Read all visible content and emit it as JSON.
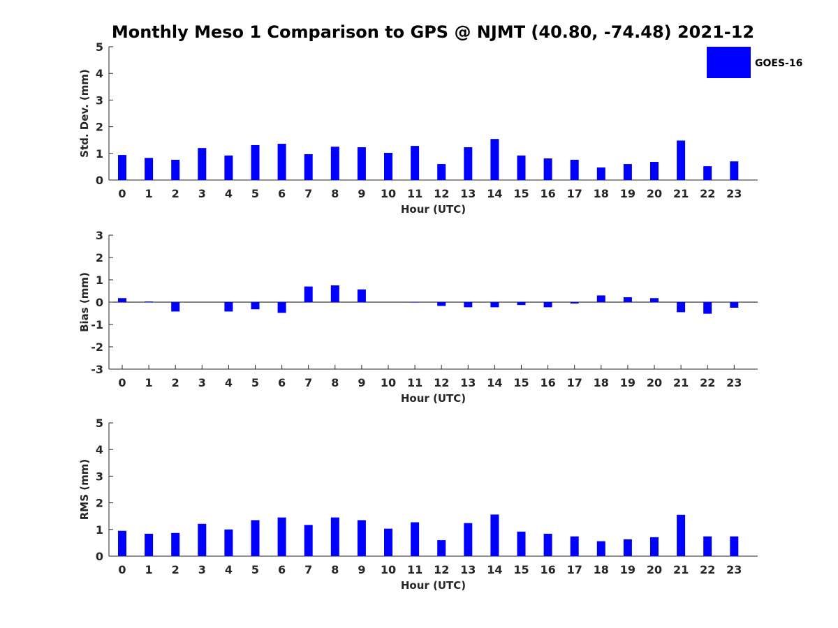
{
  "title": "Monthly Meso 1 Comparison to GPS @ NJMT (40.80, -74.48) 2021-12",
  "colors": {
    "bar": "#0000ff",
    "axis": "#262626"
  },
  "legend": {
    "label": "GOES-16",
    "placement": "top-right"
  },
  "chart_data": [
    {
      "type": "bar",
      "xlabel": "Hour (UTC)",
      "ylabel": "Std. Dev. (mm)",
      "ylim": [
        0,
        5
      ],
      "yticks": [
        "0",
        "1",
        "2",
        "3",
        "4",
        "5"
      ],
      "categories": [
        "0",
        "1",
        "2",
        "3",
        "4",
        "5",
        "6",
        "7",
        "8",
        "9",
        "10",
        "11",
        "12",
        "13",
        "14",
        "15",
        "16",
        "17",
        "18",
        "19",
        "20",
        "21",
        "22",
        "23"
      ],
      "series": [
        {
          "name": "GOES-16",
          "values": [
            0.94,
            0.83,
            0.76,
            1.2,
            0.92,
            1.31,
            1.36,
            0.97,
            1.25,
            1.23,
            1.02,
            1.28,
            0.6,
            1.23,
            1.54,
            0.92,
            0.81,
            0.76,
            0.47,
            0.6,
            0.68,
            1.48,
            0.52,
            0.7
          ]
        }
      ]
    },
    {
      "type": "bar",
      "xlabel": "Hour (UTC)",
      "ylabel": "Bias (mm)",
      "ylim": [
        -3,
        3
      ],
      "yticks": [
        "-3",
        "-2",
        "-1",
        "0",
        "1",
        "2",
        "3"
      ],
      "categories": [
        "0",
        "1",
        "2",
        "3",
        "4",
        "5",
        "6",
        "7",
        "8",
        "9",
        "10",
        "11",
        "12",
        "13",
        "14",
        "15",
        "16",
        "17",
        "18",
        "19",
        "20",
        "21",
        "22",
        "23"
      ],
      "series": [
        {
          "name": "GOES-16",
          "values": [
            0.18,
            0.03,
            -0.42,
            0.0,
            -0.42,
            -0.32,
            -0.48,
            0.7,
            0.75,
            0.57,
            0.0,
            -0.02,
            -0.17,
            -0.23,
            -0.23,
            -0.13,
            -0.23,
            -0.06,
            0.3,
            0.22,
            0.18,
            -0.45,
            -0.52,
            -0.25
          ]
        }
      ]
    },
    {
      "type": "bar",
      "xlabel": "Hour (UTC)",
      "ylabel": "RMS (mm)",
      "ylim": [
        0,
        5
      ],
      "yticks": [
        "0",
        "1",
        "2",
        "3",
        "4",
        "5"
      ],
      "categories": [
        "0",
        "1",
        "2",
        "3",
        "4",
        "5",
        "6",
        "7",
        "8",
        "9",
        "10",
        "11",
        "12",
        "13",
        "14",
        "15",
        "16",
        "17",
        "18",
        "19",
        "20",
        "21",
        "22",
        "23"
      ],
      "series": [
        {
          "name": "GOES-16",
          "values": [
            0.95,
            0.84,
            0.87,
            1.21,
            1.0,
            1.35,
            1.45,
            1.17,
            1.45,
            1.35,
            1.03,
            1.27,
            0.6,
            1.24,
            1.56,
            0.92,
            0.84,
            0.74,
            0.56,
            0.63,
            0.71,
            1.55,
            0.74,
            0.74
          ]
        }
      ]
    }
  ]
}
